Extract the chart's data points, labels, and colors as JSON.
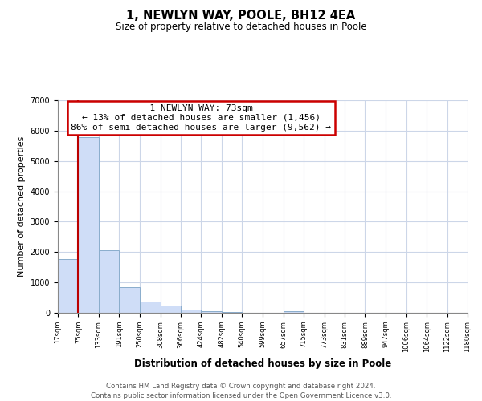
{
  "title": "1, NEWLYN WAY, POOLE, BH12 4EA",
  "subtitle": "Size of property relative to detached houses in Poole",
  "xlabel": "Distribution of detached houses by size in Poole",
  "ylabel": "Number of detached properties",
  "bar_color": "#cfddf7",
  "bar_edge_color": "#8aadcc",
  "bin_edges": [
    17,
    75,
    133,
    191,
    250,
    308,
    366,
    424,
    482,
    540,
    599,
    657,
    715,
    773,
    831,
    889,
    947,
    1006,
    1064,
    1122,
    1180
  ],
  "bar_heights": [
    1780,
    5780,
    2060,
    840,
    370,
    230,
    100,
    55,
    20,
    10,
    8,
    55,
    0,
    0,
    0,
    0,
    0,
    0,
    0,
    0
  ],
  "property_size": 73,
  "annotation_line1": "1 NEWLYN WAY: 73sqm",
  "annotation_line2": "← 13% of detached houses are smaller (1,456)",
  "annotation_line3": "86% of semi-detached houses are larger (9,562) →",
  "red_line_color": "#bb0000",
  "annotation_box_color": "#ffffff",
  "annotation_box_edge_color": "#cc0000",
  "ylim": [
    0,
    7000
  ],
  "tick_labels": [
    "17sqm",
    "75sqm",
    "133sqm",
    "191sqm",
    "250sqm",
    "308sqm",
    "366sqm",
    "424sqm",
    "482sqm",
    "540sqm",
    "599sqm",
    "657sqm",
    "715sqm",
    "773sqm",
    "831sqm",
    "889sqm",
    "947sqm",
    "1006sqm",
    "1064sqm",
    "1122sqm",
    "1180sqm"
  ],
  "footer_line1": "Contains HM Land Registry data © Crown copyright and database right 2024.",
  "footer_line2": "Contains public sector information licensed under the Open Government Licence v3.0.",
  "bg_color": "#ffffff",
  "grid_color": "#ccd6e8"
}
